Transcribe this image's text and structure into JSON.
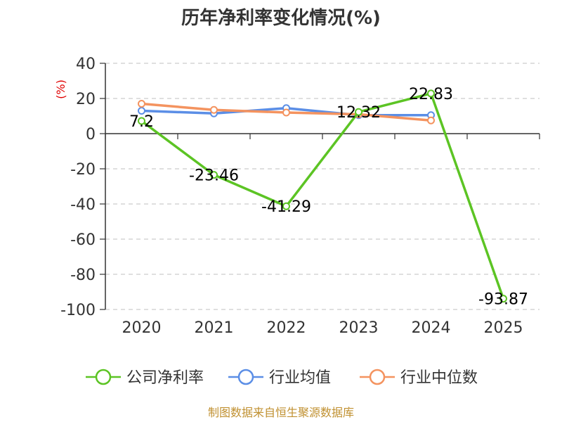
{
  "colors": {
    "axis": "#333333",
    "grid": "#cccccc",
    "unit_label": "#e00000",
    "source_text": "#c09030"
  },
  "source": "制图数据来自恒生聚源数据库",
  "chart_data": {
    "type": "line",
    "title": "历年净利率变化情况(%)",
    "ylabel": "(%)",
    "xlabel": "",
    "categories": [
      "2020",
      "2021",
      "2022",
      "2023",
      "2024",
      "2025"
    ],
    "ylim": [
      -100,
      40
    ],
    "yticks": [
      40,
      20,
      0,
      -20,
      -40,
      -60,
      -80,
      -100
    ],
    "grid": true,
    "legend_position": "bottom",
    "series": [
      {
        "name": "公司净利率",
        "color": "#5cc424",
        "values": [
          7.2,
          -23.46,
          -41.29,
          12.32,
          22.83,
          -93.87
        ],
        "labels": [
          "7.2",
          "-23.46",
          "-41.29",
          "12.32",
          "22.83",
          "-93.87"
        ]
      },
      {
        "name": "行业均值",
        "color": "#5b8ee6",
        "values": [
          13,
          11.5,
          14.5,
          10.5,
          10.5,
          null
        ]
      },
      {
        "name": "行业中位数",
        "color": "#f4935f",
        "values": [
          17,
          13.5,
          12,
          11,
          7.5,
          null
        ]
      }
    ]
  }
}
